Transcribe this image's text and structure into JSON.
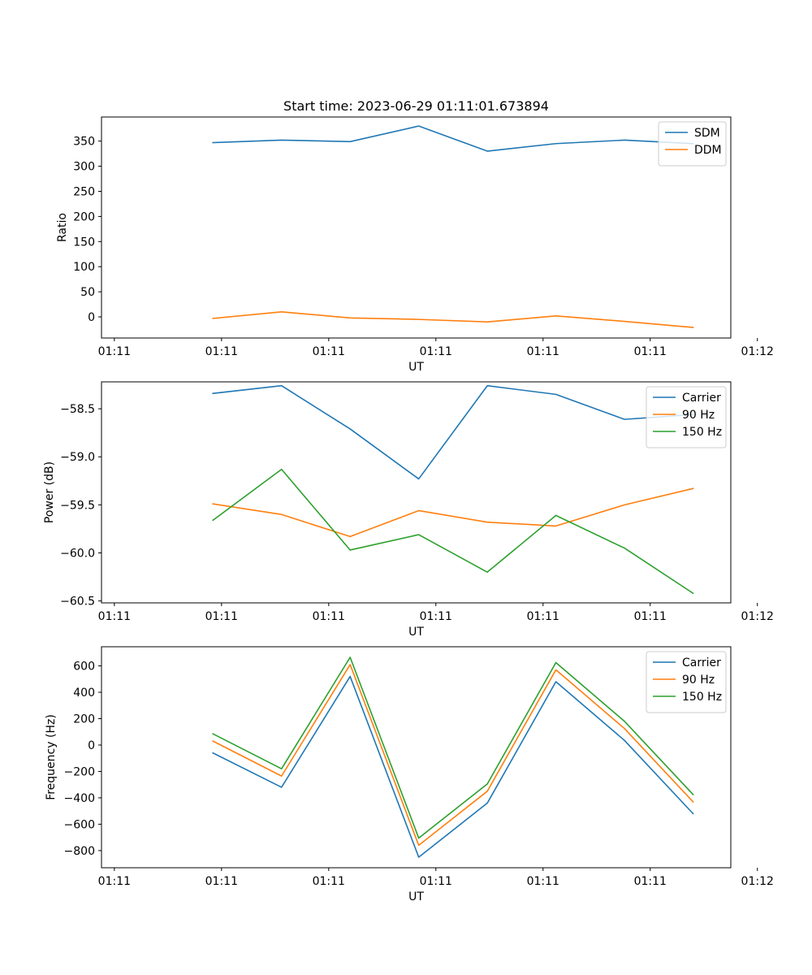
{
  "figure": {
    "title": "Start time: 2023-06-29 01:11:01.673894"
  },
  "chart_data": [
    {
      "type": "line",
      "title": "Start time: 2023-06-29 01:11:01.673894",
      "xlabel": "UT",
      "ylabel": "Ratio",
      "x": [
        2.4,
        3.2,
        4.0,
        4.8,
        5.6,
        6.4,
        7.2,
        8.0
      ],
      "xlim": [
        1.1,
        8.44
      ],
      "x_ticks": [
        {
          "v": 1.25,
          "label": "01:11"
        },
        {
          "v": 2.5,
          "label": "01:11"
        },
        {
          "v": 3.75,
          "label": "01:11"
        },
        {
          "v": 5.0,
          "label": "01:11"
        },
        {
          "v": 6.25,
          "label": "01:11"
        },
        {
          "v": 7.5,
          "label": "01:11"
        },
        {
          "v": 8.75,
          "label": "01:12"
        }
      ],
      "ylim": [
        -42,
        398
      ],
      "y_ticks": [
        {
          "v": 0,
          "label": "0"
        },
        {
          "v": 50,
          "label": "50"
        },
        {
          "v": 100,
          "label": "100"
        },
        {
          "v": 150,
          "label": "150"
        },
        {
          "v": 200,
          "label": "200"
        },
        {
          "v": 250,
          "label": "250"
        },
        {
          "v": 300,
          "label": "300"
        },
        {
          "v": 350,
          "label": "350"
        }
      ],
      "legend": "top-right",
      "series": [
        {
          "name": "SDM",
          "color": "#1f77b4",
          "values": [
            347,
            352,
            349,
            380,
            330,
            345,
            352,
            345
          ]
        },
        {
          "name": "DDM",
          "color": "#ff7f0e",
          "values": [
            -3,
            10,
            -2,
            -5,
            -10,
            2,
            -9,
            -21
          ]
        }
      ]
    },
    {
      "type": "line",
      "title": "",
      "xlabel": "UT",
      "ylabel": "Power (dB)",
      "x": [
        2.4,
        3.2,
        4.0,
        4.8,
        5.6,
        6.4,
        7.2,
        8.0
      ],
      "xlim": [
        1.1,
        8.44
      ],
      "x_ticks": [
        {
          "v": 1.25,
          "label": "01:11"
        },
        {
          "v": 2.5,
          "label": "01:11"
        },
        {
          "v": 3.75,
          "label": "01:11"
        },
        {
          "v": 5.0,
          "label": "01:11"
        },
        {
          "v": 6.25,
          "label": "01:11"
        },
        {
          "v": 7.5,
          "label": "01:11"
        },
        {
          "v": 8.75,
          "label": "01:12"
        }
      ],
      "ylim": [
        -60.52,
        -58.22
      ],
      "y_ticks": [
        {
          "v": -58.5,
          "label": "−58.5"
        },
        {
          "v": -59.0,
          "label": "−59.0"
        },
        {
          "v": -59.5,
          "label": "−59.5"
        },
        {
          "v": -60.0,
          "label": "−60.0"
        },
        {
          "v": -60.5,
          "label": "−60.5"
        }
      ],
      "legend": "top-right",
      "series": [
        {
          "name": "Carrier",
          "color": "#1f77b4",
          "values": [
            -58.34,
            -58.26,
            -58.71,
            -59.23,
            -58.26,
            -58.35,
            -58.61,
            -58.56
          ]
        },
        {
          "name": "90 Hz",
          "color": "#ff7f0e",
          "values": [
            -59.49,
            -59.6,
            -59.83,
            -59.56,
            -59.68,
            -59.72,
            -59.5,
            -59.33
          ]
        },
        {
          "name": "150 Hz",
          "color": "#2ca02c",
          "values": [
            -59.66,
            -59.13,
            -59.97,
            -59.81,
            -60.2,
            -59.61,
            -59.95,
            -60.42
          ]
        }
      ]
    },
    {
      "type": "line",
      "title": "",
      "xlabel": "UT",
      "ylabel": "Frequency (Hz)",
      "x": [
        2.4,
        3.2,
        4.0,
        4.8,
        5.6,
        6.4,
        7.2,
        8.0
      ],
      "xlim": [
        1.1,
        8.44
      ],
      "x_ticks": [
        {
          "v": 1.25,
          "label": "01:11"
        },
        {
          "v": 2.5,
          "label": "01:11"
        },
        {
          "v": 3.75,
          "label": "01:11"
        },
        {
          "v": 5.0,
          "label": "01:11"
        },
        {
          "v": 6.25,
          "label": "01:11"
        },
        {
          "v": 7.5,
          "label": "01:11"
        },
        {
          "v": 8.75,
          "label": "01:12"
        }
      ],
      "ylim": [
        -930,
        745
      ],
      "y_ticks": [
        {
          "v": -800,
          "label": "−800"
        },
        {
          "v": -600,
          "label": "−600"
        },
        {
          "v": -400,
          "label": "−400"
        },
        {
          "v": -200,
          "label": "−200"
        },
        {
          "v": 0,
          "label": "0"
        },
        {
          "v": 200,
          "label": "200"
        },
        {
          "v": 400,
          "label": "400"
        },
        {
          "v": 600,
          "label": "600"
        }
      ],
      "legend": "top-right",
      "series": [
        {
          "name": "Carrier",
          "color": "#1f77b4",
          "values": [
            -60,
            -320,
            520,
            -850,
            -440,
            480,
            35,
            -520
          ]
        },
        {
          "name": "90 Hz",
          "color": "#ff7f0e",
          "values": [
            30,
            -235,
            610,
            -760,
            -350,
            570,
            125,
            -430
          ]
        },
        {
          "name": "150 Hz",
          "color": "#2ca02c",
          "values": [
            85,
            -180,
            665,
            -705,
            -295,
            625,
            180,
            -375
          ]
        }
      ]
    }
  ]
}
